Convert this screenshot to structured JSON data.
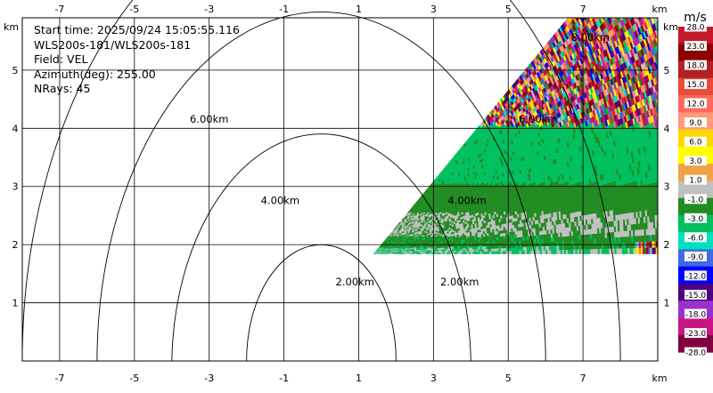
{
  "chart_data": {
    "type": "heatmap",
    "info": {
      "start_time": "Start time: 2025/09/24 15:05:55.116",
      "instrument": "WLS200s-181/WLS200s-181",
      "field": "Field: VEL",
      "azimuth": "Azimuth(deg): 255.00",
      "nrays": "NRays: 45"
    },
    "x_unit": "km",
    "y_unit": "km",
    "xlim": [
      -8.0,
      9.0
    ],
    "ylim": [
      0.0,
      5.9
    ],
    "x_ticks": [
      -7,
      -5,
      -3,
      -1,
      1,
      3,
      5,
      7
    ],
    "y_ticks": [
      1,
      2,
      3,
      4,
      5
    ],
    "grid": true,
    "range_rings": [
      {
        "label": "2.00km",
        "radius": 2.0
      },
      {
        "label": "4.00km",
        "radius": 4.0
      },
      {
        "label": "6.00km",
        "radius": 6.0
      },
      {
        "label": "8.00km",
        "radius": 8.0
      }
    ],
    "scan_sector": {
      "elevation_min_deg": 0.0,
      "elevation_max_deg": 38.0,
      "range_max_km": 9.5
    },
    "colorbar": {
      "unit": "m/s",
      "ticks": [
        "28.0",
        "23.0",
        "18.0",
        "15.0",
        "12.0",
        "9.0",
        "6.0",
        "3.0",
        "1.0",
        "-1.0",
        "-3.0",
        "-6.0",
        "-9.0",
        "-12.0",
        "-15.0",
        "-18.0",
        "-23.0",
        "-28.0"
      ],
      "colors": [
        "#c21a2b",
        "#8b0000",
        "#b22222",
        "#e84b3a",
        "#ff6a5a",
        "#ff9a7a",
        "#ffd700",
        "#ffff00",
        "#f2a04a",
        "#c0c0c0",
        "#228b22",
        "#00c060",
        "#00e0c0",
        "#4169e1",
        "#0000ff",
        "#4b0082",
        "#9932cc",
        "#c71585",
        "#800040"
      ]
    },
    "velocity_bands": [
      {
        "range_km": [
          0.0,
          2.1
        ],
        "value": 1.0
      },
      {
        "range_km": [
          2.1,
          4.6
        ],
        "value": -1.0
      },
      {
        "range_km": [
          4.6,
          5.4
        ],
        "value": 1.0
      },
      {
        "range_km": [
          5.4,
          7.0
        ],
        "value": -1.0
      },
      {
        "range_km": [
          7.0,
          8.3
        ],
        "value": -3.0
      },
      {
        "range_km": [
          8.3,
          9.5
        ],
        "value": "noise"
      }
    ]
  }
}
